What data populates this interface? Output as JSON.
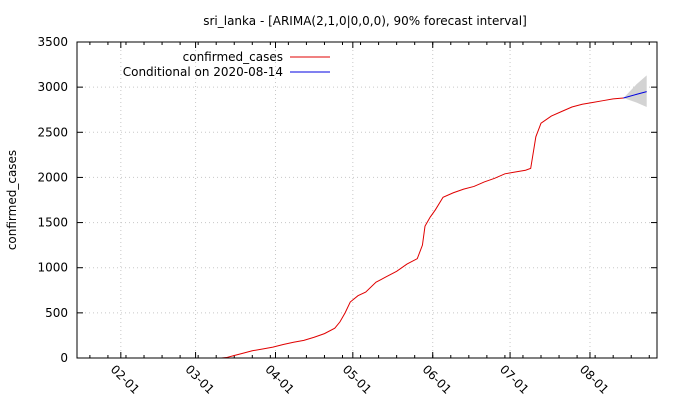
{
  "chart_data": {
    "type": "line",
    "title": "sri_lanka -  [ARIMA(2,1,0|0,0,0), 90% forecast interval]",
    "xlabel": "",
    "ylabel": "confirmed_cases",
    "ylim": [
      0,
      3500
    ],
    "xlim": [
      "2020-01-15",
      "2020-08-27"
    ],
    "yticks": [
      0,
      500,
      1000,
      1500,
      2000,
      2500,
      3000,
      3500
    ],
    "xticks": [
      {
        "date": "2020-02-01",
        "label": "02-01"
      },
      {
        "date": "2020-03-01",
        "label": "03-01"
      },
      {
        "date": "2020-04-01",
        "label": "04-01"
      },
      {
        "date": "2020-05-01",
        "label": "05-01"
      },
      {
        "date": "2020-06-01",
        "label": "06-01"
      },
      {
        "date": "2020-07-01",
        "label": "07-01"
      },
      {
        "date": "2020-08-01",
        "label": "08-01"
      }
    ],
    "grid": true,
    "legend_position": "top-right",
    "series": [
      {
        "name": "confirmed_cases",
        "color": "#e00000",
        "points": [
          [
            "2020-03-11",
            0
          ],
          [
            "2020-03-13",
            5
          ],
          [
            "2020-03-16",
            28
          ],
          [
            "2020-03-19",
            50
          ],
          [
            "2020-03-23",
            80
          ],
          [
            "2020-03-27",
            100
          ],
          [
            "2020-03-31",
            120
          ],
          [
            "2020-04-04",
            150
          ],
          [
            "2020-04-08",
            175
          ],
          [
            "2020-04-12",
            195
          ],
          [
            "2020-04-16",
            230
          ],
          [
            "2020-04-20",
            270
          ],
          [
            "2020-04-24",
            330
          ],
          [
            "2020-04-26",
            400
          ],
          [
            "2020-04-28",
            500
          ],
          [
            "2020-04-30",
            620
          ],
          [
            "2020-05-03",
            690
          ],
          [
            "2020-05-06",
            730
          ],
          [
            "2020-05-10",
            840
          ],
          [
            "2020-05-14",
            900
          ],
          [
            "2020-05-18",
            960
          ],
          [
            "2020-05-22",
            1040
          ],
          [
            "2020-05-26",
            1100
          ],
          [
            "2020-05-28",
            1250
          ],
          [
            "2020-05-29",
            1460
          ],
          [
            "2020-05-31",
            1560
          ],
          [
            "2020-06-02",
            1640
          ],
          [
            "2020-06-05",
            1780
          ],
          [
            "2020-06-09",
            1830
          ],
          [
            "2020-06-13",
            1870
          ],
          [
            "2020-06-17",
            1900
          ],
          [
            "2020-06-21",
            1950
          ],
          [
            "2020-06-25",
            1990
          ],
          [
            "2020-06-29",
            2040
          ],
          [
            "2020-07-03",
            2060
          ],
          [
            "2020-07-07",
            2080
          ],
          [
            "2020-07-09",
            2100
          ],
          [
            "2020-07-11",
            2450
          ],
          [
            "2020-07-13",
            2600
          ],
          [
            "2020-07-17",
            2680
          ],
          [
            "2020-07-21",
            2730
          ],
          [
            "2020-07-25",
            2780
          ],
          [
            "2020-07-29",
            2810
          ],
          [
            "2020-08-02",
            2830
          ],
          [
            "2020-08-06",
            2850
          ],
          [
            "2020-08-10",
            2870
          ],
          [
            "2020-08-14",
            2880
          ]
        ]
      },
      {
        "name": "Conditional on 2020-08-14",
        "color": "#0000e0",
        "points": [
          [
            "2020-08-14",
            2880
          ],
          [
            "2020-08-19",
            2920
          ],
          [
            "2020-08-23",
            2950
          ]
        ]
      }
    ],
    "forecast_interval": {
      "color": "#d3d3d3",
      "points": [
        [
          "2020-08-14",
          2880,
          2880
        ],
        [
          "2020-08-19",
          2830,
          3030
        ],
        [
          "2020-08-23",
          2780,
          3130
        ]
      ]
    }
  }
}
